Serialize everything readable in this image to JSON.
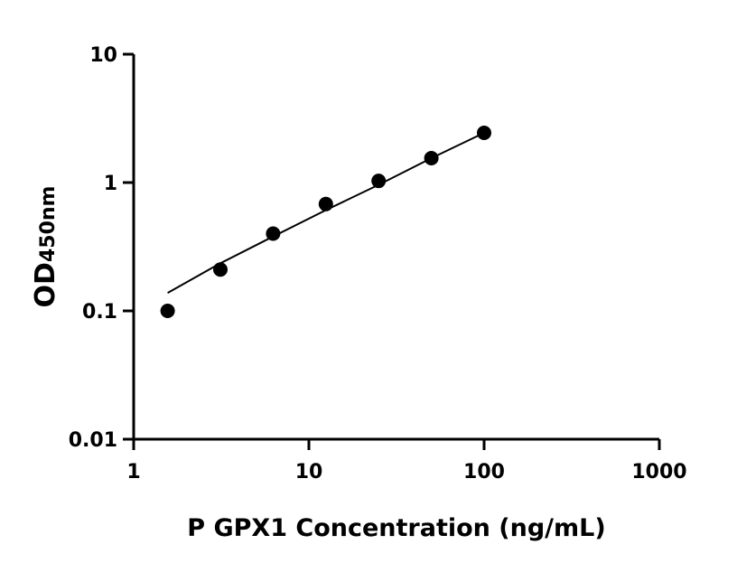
{
  "chart_data": {
    "type": "scatter",
    "xlabel": "P GPX1 Concentration (ng/mL)",
    "ylabel": "OD",
    "ylabel_subscript": "450nm",
    "x_scale": "log",
    "y_scale": "log",
    "xlim": [
      1,
      1000
    ],
    "ylim": [
      0.01,
      10
    ],
    "x_ticks": [
      "1",
      "10",
      "100",
      "1000"
    ],
    "y_ticks": [
      "0.01",
      "0.1",
      "1",
      "10"
    ],
    "grid": false,
    "x": [
      1.5625,
      3.125,
      6.25,
      12.5,
      25,
      50,
      100
    ],
    "y": [
      0.1,
      0.21,
      0.4,
      0.68,
      1.03,
      1.55,
      2.44
    ],
    "fit_curve": [
      [
        1.5625,
        0.138
      ],
      [
        3.125,
        0.235
      ],
      [
        6.25,
        0.38
      ],
      [
        12.5,
        0.61
      ],
      [
        25,
        0.96
      ],
      [
        50,
        1.55
      ],
      [
        100,
        2.44
      ]
    ],
    "color": "#000000"
  }
}
